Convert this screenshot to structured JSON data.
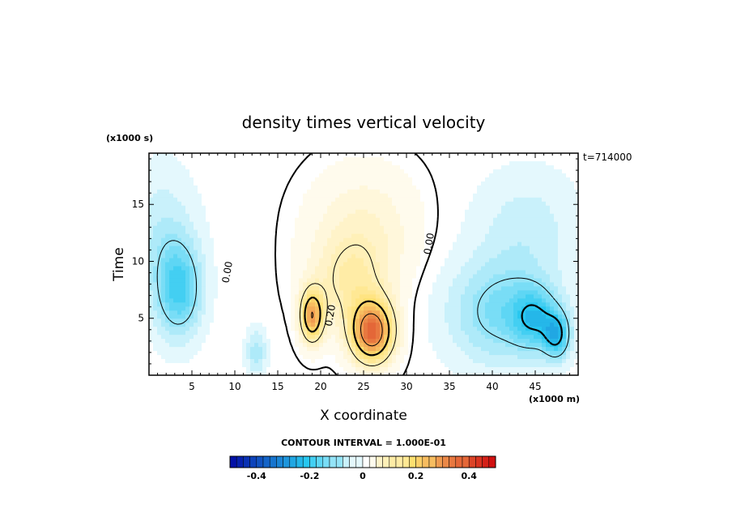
{
  "chart_data": {
    "type": "heatmap",
    "title": "density times vertical velocity",
    "xlabel": "X coordinate",
    "ylabel": "Time",
    "x_unit": "(x1000 m)",
    "y_unit": "(x1000 s)",
    "time_stamp": "t=714000",
    "xlim": [
      0,
      50
    ],
    "ylim": [
      0,
      19.5
    ],
    "x_ticks": [
      5,
      10,
      15,
      20,
      25,
      30,
      35,
      40,
      45
    ],
    "y_ticks": [
      5,
      10,
      15
    ],
    "contour_interval_text": "CONTOUR INTERVAL = 1.000E-01",
    "contour_labels": [
      {
        "text": "0.00",
        "x": 9.5,
        "y": 9.0
      },
      {
        "text": "0.20",
        "x": 21.5,
        "y": 5.2
      },
      {
        "text": "0.00",
        "x": 33.0,
        "y": 11.5
      }
    ],
    "colorbar": {
      "min": -0.5,
      "max": 0.5,
      "tick_values": [
        -0.4,
        -0.2,
        0,
        0.2,
        0.4
      ],
      "tick_labels": [
        "-0.4",
        "-0.2",
        "0",
        "0.2",
        "0.4"
      ]
    },
    "colors": {
      "negative_strong": "#0000a0",
      "negative": "#28c8f0",
      "neutral": "#ffffff",
      "positive": "#ffe070",
      "positive_strong": "#d01010"
    },
    "features": [
      {
        "x": 3.5,
        "y": 7.5,
        "amp": -0.16,
        "sx": 2.6,
        "sy": 4.0
      },
      {
        "x": 1.5,
        "y": 12.0,
        "amp": -0.06,
        "sx": 4.0,
        "sy": 6.0
      },
      {
        "x": 41.0,
        "y": 5.5,
        "amp": -0.12,
        "sx": 6.0,
        "sy": 4.5
      },
      {
        "x": 45.0,
        "y": 5.0,
        "amp": -0.14,
        "sx": 2.5,
        "sy": 2.5
      },
      {
        "x": 47.5,
        "y": 3.5,
        "amp": -0.18,
        "sx": 1.5,
        "sy": 2.0
      },
      {
        "x": 44.0,
        "y": 13.0,
        "amp": -0.05,
        "sx": 6.0,
        "sy": 5.0
      },
      {
        "x": 12.5,
        "y": 2.0,
        "amp": -0.08,
        "sx": 1.2,
        "sy": 2.0
      },
      {
        "x": 26.0,
        "y": 3.8,
        "amp": 0.36,
        "sx": 2.4,
        "sy": 2.6
      },
      {
        "x": 19.0,
        "y": 5.2,
        "amp": 0.28,
        "sx": 1.3,
        "sy": 2.2
      },
      {
        "x": 23.5,
        "y": 8.0,
        "amp": 0.1,
        "sx": 4.5,
        "sy": 4.0
      },
      {
        "x": 25.0,
        "y": 13.0,
        "amp": 0.06,
        "sx": 6.0,
        "sy": 5.0
      }
    ]
  }
}
